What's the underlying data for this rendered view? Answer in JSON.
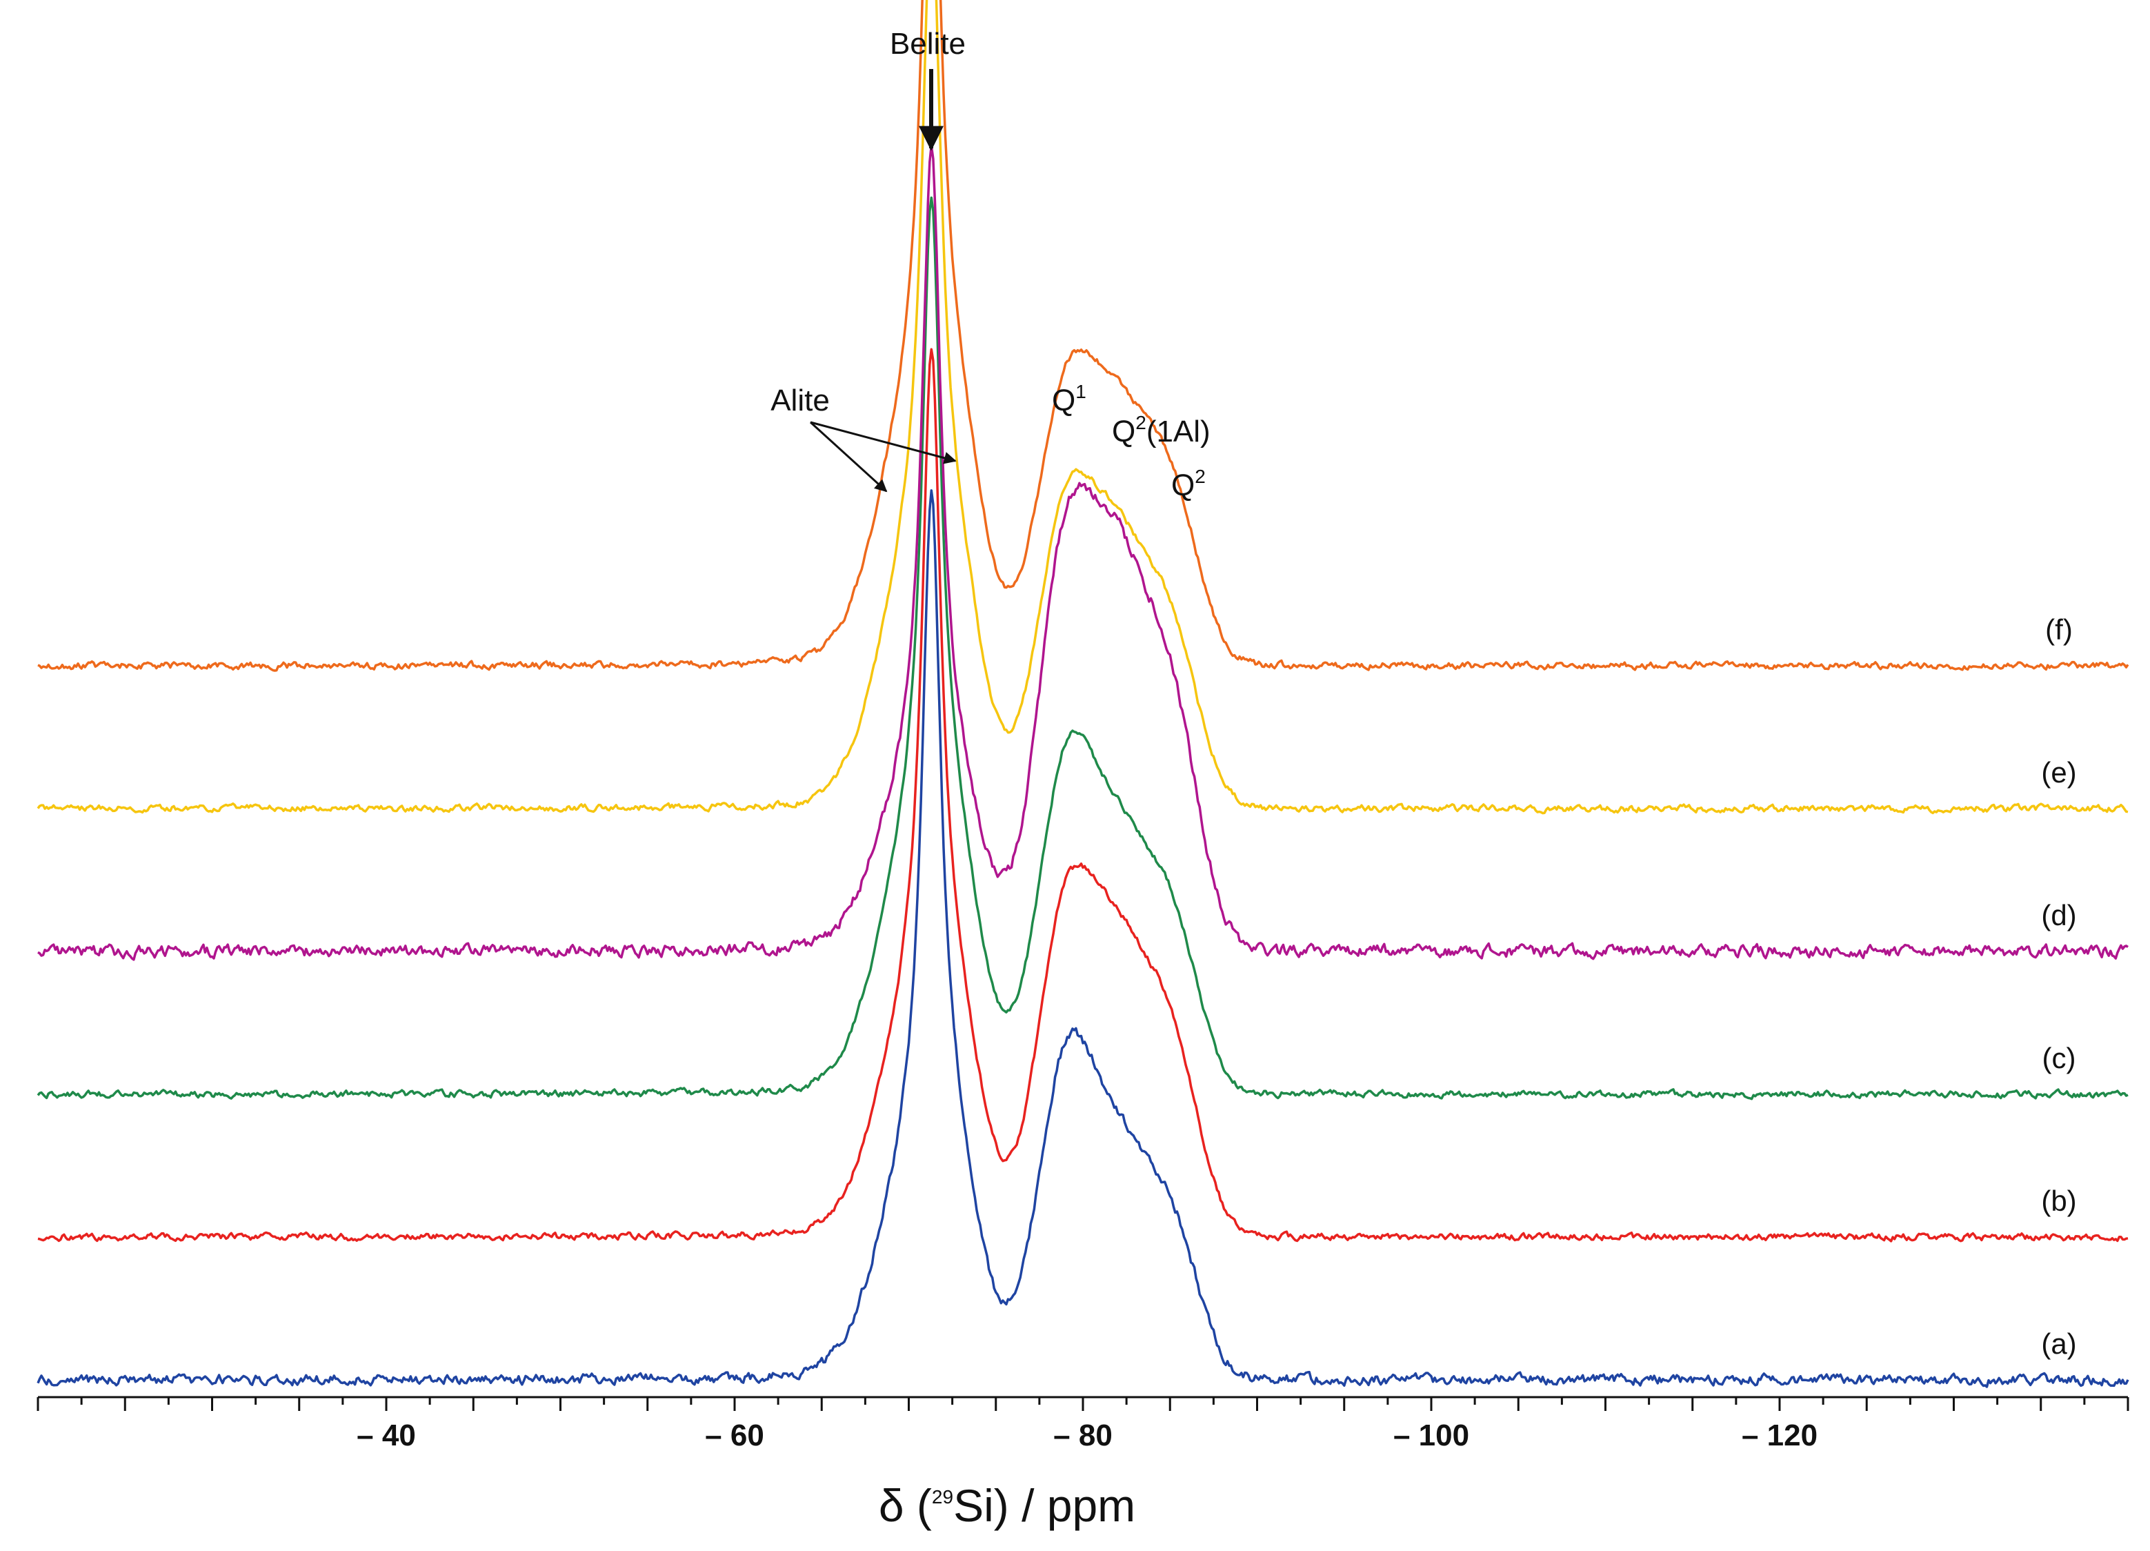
{
  "chart_data": {
    "type": "line",
    "title": "",
    "xlabel_prefix": "δ (",
    "xlabel_sup": "29",
    "xlabel_suffix": "Si) / ppm",
    "xlim": [
      -20,
      -140
    ],
    "x_reversed": true,
    "x_ticks": [
      {
        "value": -40,
        "label": "– 40"
      },
      {
        "value": -60,
        "label": "– 60"
      },
      {
        "value": -80,
        "label": "– 80"
      },
      {
        "value": -100,
        "label": "– 100"
      },
      {
        "value": -120,
        "label": "– 120"
      }
    ],
    "y_axis_shown": false,
    "peaks_ppm": {
      "alite_a": -69,
      "belite": -71.3,
      "alite_b": -73,
      "q1": -79,
      "q2_1al": -82,
      "q2": -85
    },
    "series": [
      {
        "name": "(a)",
        "color": "#1f44a2",
        "offset": 0,
        "belite": 0.65,
        "alite": 0.22,
        "q1": 0.3,
        "q2al": 0.19,
        "q2": 0.15,
        "seed": 11,
        "noise": 0.006
      },
      {
        "name": "(b)",
        "color": "#e8221f",
        "offset": 1,
        "belite": 0.64,
        "alite": 0.23,
        "q1": 0.31,
        "q2al": 0.24,
        "q2": 0.19,
        "seed": 23,
        "noise": 0.004
      },
      {
        "name": "(c)",
        "color": "#1f8a4a",
        "offset": 2,
        "belite": 0.63,
        "alite": 0.25,
        "q1": 0.31,
        "q2al": 0.21,
        "q2": 0.17,
        "seed": 37,
        "noise": 0.004
      },
      {
        "name": "(d)",
        "color": "#b0158e",
        "offset": 3,
        "belite": 0.62,
        "alite": 0.17,
        "q1": 0.38,
        "q2al": 0.32,
        "q2": 0.24,
        "seed": 51,
        "noise": 0.007
      },
      {
        "name": "(e)",
        "color": "#f6c50f",
        "offset": 4,
        "belite": 0.64,
        "alite": 0.25,
        "q1": 0.28,
        "q2al": 0.22,
        "q2": 0.17,
        "seed": 67,
        "noise": 0.004
      },
      {
        "name": "(f)",
        "color": "#ee6a1c",
        "offset": 5,
        "belite": 0.64,
        "alite": 0.26,
        "q1": 0.26,
        "q2al": 0.21,
        "q2": 0.17,
        "seed": 79,
        "noise": 0.004
      }
    ],
    "annotations": {
      "belite": "Belite",
      "alite": "Alite",
      "q1_base": "Q",
      "q1_sup": "1",
      "q2al_base": "Q",
      "q2al_sup": "2",
      "q2al_suffix": "(1Al)",
      "q2_base": "Q",
      "q2_sup": "2"
    }
  }
}
